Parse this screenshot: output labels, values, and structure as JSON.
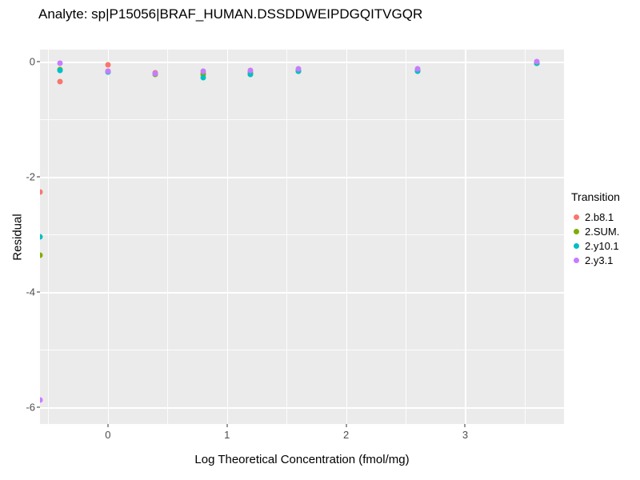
{
  "chart_data": {
    "type": "scatter",
    "title": "Analyte: sp|P15056|BRAF_HUMAN.DSSDDWEIPDGQITVGQR",
    "xlabel": "Log Theoretical Concentration (fmol/mg)",
    "ylabel": "Residual",
    "legend_title": "Transition",
    "legend_position": "right",
    "grid": true,
    "panel_bg": "#EBEBEB",
    "grid_color": "#FFFFFF",
    "xlim": [
      -0.57,
      3.83
    ],
    "ylim": [
      -6.29,
      0.21
    ],
    "x_ticks": [
      0,
      1,
      2,
      3
    ],
    "y_ticks": [
      0,
      -2,
      -4,
      -6
    ],
    "x_minor": [
      -0.5,
      0.5,
      1.5,
      2.5,
      3.5
    ],
    "y_minor": [
      -1,
      -3,
      -5
    ],
    "series": [
      {
        "name": "2.b8.1",
        "color": "#F8766D",
        "points": [
          [
            -0.57,
            -2.26
          ],
          [
            -0.4,
            -0.35
          ],
          [
            0,
            -0.05
          ],
          [
            0.4,
            -0.19
          ],
          [
            0.8,
            -0.2
          ],
          [
            1.2,
            -0.18
          ],
          [
            1.6,
            -0.14
          ],
          [
            2.6,
            -0.14
          ],
          [
            3.6,
            -0.02
          ]
        ]
      },
      {
        "name": "2.SUM.",
        "color": "#7CAE00",
        "points": [
          [
            -0.57,
            -3.36
          ],
          [
            -0.4,
            -0.14
          ],
          [
            0,
            -0.17
          ],
          [
            0.4,
            -0.22
          ],
          [
            0.8,
            -0.22
          ],
          [
            1.2,
            -0.2
          ],
          [
            1.6,
            -0.16
          ],
          [
            2.6,
            -0.15
          ],
          [
            3.6,
            -0.03
          ]
        ]
      },
      {
        "name": "2.y10.1",
        "color": "#00BFC4",
        "points": [
          [
            -0.57,
            -3.04
          ],
          [
            -0.4,
            -0.15
          ],
          [
            0,
            -0.18
          ],
          [
            0.4,
            -0.21
          ],
          [
            0.8,
            -0.28
          ],
          [
            1.2,
            -0.22
          ],
          [
            1.6,
            -0.17
          ],
          [
            2.6,
            -0.16
          ],
          [
            3.6,
            -0.02
          ]
        ]
      },
      {
        "name": "2.y3.1",
        "color": "#C77CFF",
        "points": [
          [
            -0.57,
            -5.87
          ],
          [
            -0.4,
            -0.03
          ],
          [
            0,
            -0.16
          ],
          [
            0.4,
            -0.2
          ],
          [
            0.8,
            -0.17
          ],
          [
            1.2,
            -0.15
          ],
          [
            1.6,
            -0.13
          ],
          [
            2.6,
            -0.12
          ],
          [
            3.6,
            0.0
          ]
        ]
      }
    ]
  }
}
